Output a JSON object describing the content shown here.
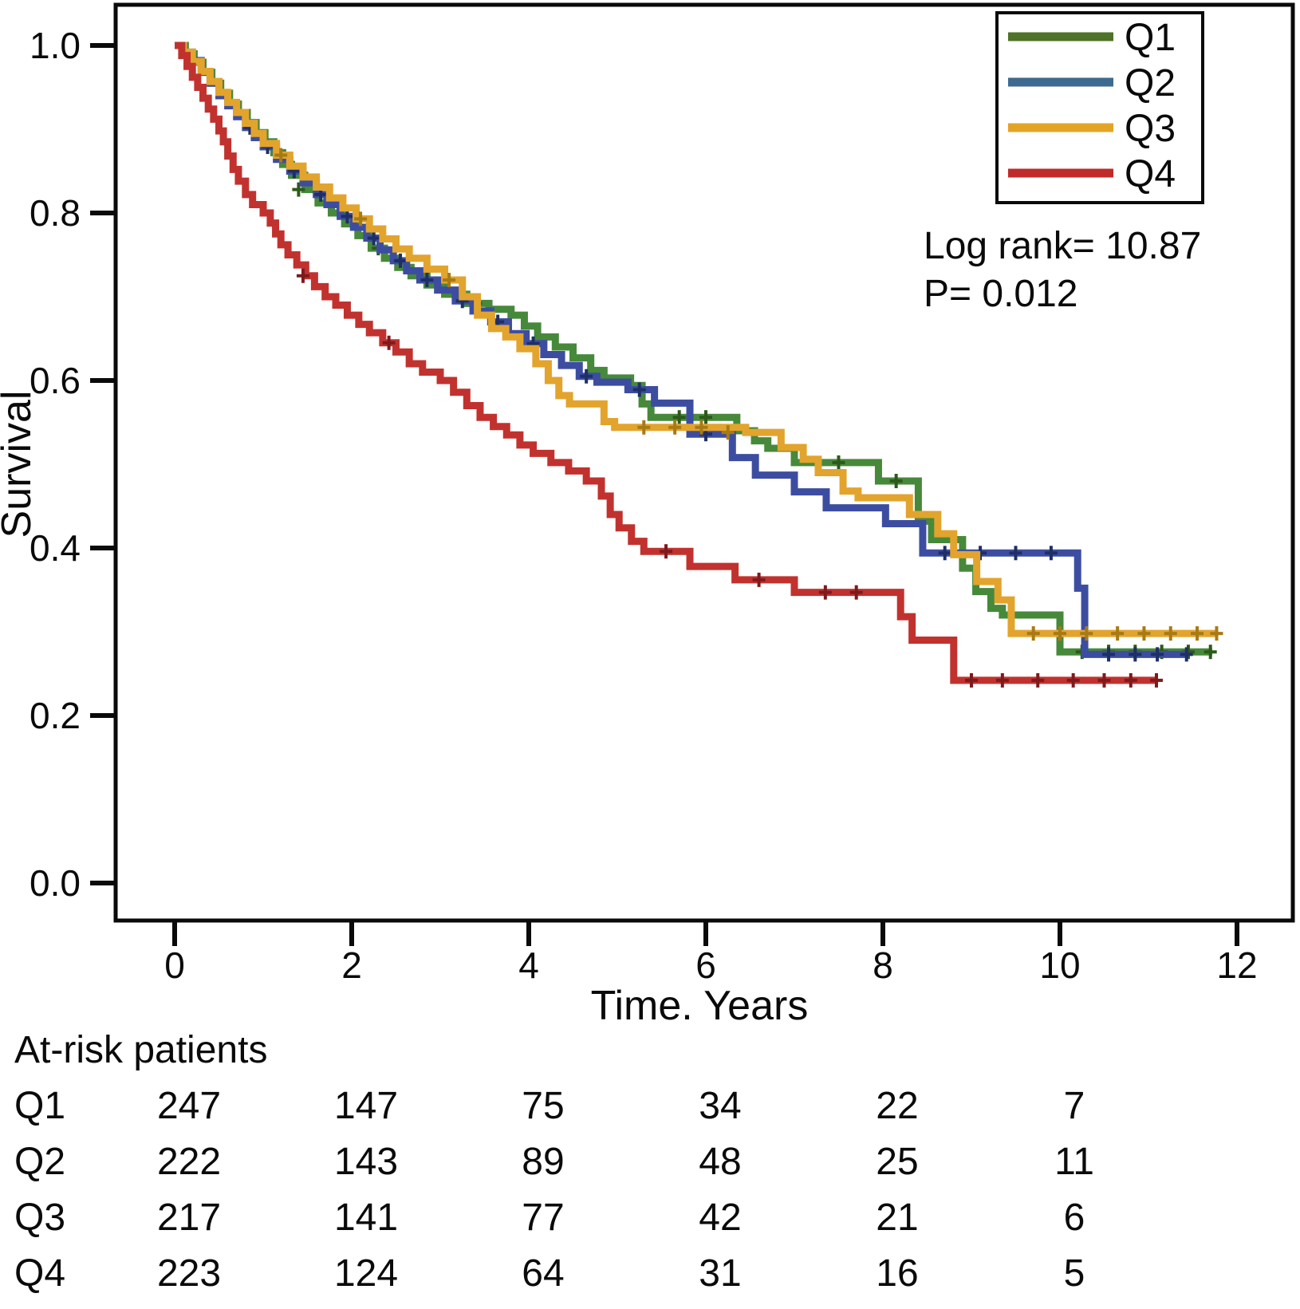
{
  "chart_data": {
    "type": "line",
    "subtype": "kaplan-meier-step",
    "title": "",
    "xlabel": "Time. Years",
    "ylabel": "Survival",
    "xlim": [
      0,
      12
    ],
    "ylim": [
      0.0,
      1.0
    ],
    "grid": false,
    "legend_position": "top-right",
    "xticks": [
      {
        "value": 0,
        "label": "0"
      },
      {
        "value": 2,
        "label": "2"
      },
      {
        "value": 4,
        "label": "4"
      },
      {
        "value": 6,
        "label": "6"
      },
      {
        "value": 8,
        "label": "8"
      },
      {
        "value": 10,
        "label": "10"
      },
      {
        "value": 12,
        "label": "12"
      }
    ],
    "yticks": [
      {
        "value": 0.0,
        "label": "0.0"
      },
      {
        "value": 0.2,
        "label": "0.2"
      },
      {
        "value": 0.4,
        "label": "0.4"
      },
      {
        "value": 0.6,
        "label": "0.6"
      },
      {
        "value": 0.8,
        "label": "0.8"
      },
      {
        "value": 1.0,
        "label": "1.0"
      }
    ],
    "annotations": [
      "Log rank= 10.87",
      "P= 0.012"
    ],
    "series": [
      {
        "name": "Q1",
        "color": "#47893a",
        "legend_color": "#4e7228",
        "censor_color": "#2c5a1a",
        "points": [
          [
            0,
            1.0
          ],
          [
            0.12,
            0.99
          ],
          [
            0.22,
            0.98
          ],
          [
            0.32,
            0.968
          ],
          [
            0.42,
            0.955
          ],
          [
            0.52,
            0.943
          ],
          [
            0.62,
            0.93
          ],
          [
            0.72,
            0.92
          ],
          [
            0.82,
            0.908
          ],
          [
            0.92,
            0.896
          ],
          [
            1.02,
            0.885
          ],
          [
            1.12,
            0.872
          ],
          [
            1.22,
            0.858
          ],
          [
            1.32,
            0.845
          ],
          [
            1.47,
            0.828
          ],
          [
            1.62,
            0.812
          ],
          [
            1.77,
            0.8
          ],
          [
            1.92,
            0.787
          ],
          [
            2.07,
            0.773
          ],
          [
            2.22,
            0.758
          ],
          [
            2.37,
            0.746
          ],
          [
            2.52,
            0.735
          ],
          [
            2.67,
            0.725
          ],
          [
            2.85,
            0.714
          ],
          [
            3.05,
            0.703
          ],
          [
            3.3,
            0.692
          ],
          [
            3.55,
            0.685
          ],
          [
            3.8,
            0.678
          ],
          [
            3.95,
            0.665
          ],
          [
            4.1,
            0.652
          ],
          [
            4.3,
            0.64
          ],
          [
            4.5,
            0.627
          ],
          [
            4.7,
            0.612
          ],
          [
            4.85,
            0.603
          ],
          [
            5.15,
            0.594
          ],
          [
            5.28,
            0.572
          ],
          [
            5.38,
            0.556
          ],
          [
            6.35,
            0.54
          ],
          [
            6.55,
            0.528
          ],
          [
            6.7,
            0.519
          ],
          [
            7.0,
            0.502
          ],
          [
            7.95,
            0.48
          ],
          [
            8.4,
            0.432
          ],
          [
            8.55,
            0.41
          ],
          [
            8.9,
            0.376
          ],
          [
            9.05,
            0.348
          ],
          [
            9.22,
            0.328
          ],
          [
            9.35,
            0.32
          ],
          [
            10.0,
            0.276
          ],
          [
            11.72,
            0.276
          ]
        ],
        "censor_marks": [
          [
            1.4,
            0.828
          ],
          [
            2.3,
            0.758
          ],
          [
            3.4,
            0.692
          ],
          [
            5.7,
            0.556
          ],
          [
            6.0,
            0.556
          ],
          [
            7.5,
            0.502
          ],
          [
            8.15,
            0.48
          ],
          [
            10.25,
            0.276
          ],
          [
            10.55,
            0.276
          ],
          [
            10.85,
            0.276
          ],
          [
            11.15,
            0.276
          ],
          [
            11.45,
            0.276
          ],
          [
            11.7,
            0.276
          ]
        ]
      },
      {
        "name": "Q2",
        "color": "#3c4da1",
        "legend_color": "#3d6a8e",
        "censor_color": "#1e2f66",
        "points": [
          [
            0,
            1.0
          ],
          [
            0.1,
            0.992
          ],
          [
            0.2,
            0.982
          ],
          [
            0.3,
            0.968
          ],
          [
            0.4,
            0.955
          ],
          [
            0.5,
            0.94
          ],
          [
            0.6,
            0.928
          ],
          [
            0.7,
            0.915
          ],
          [
            0.8,
            0.902
          ],
          [
            0.9,
            0.89
          ],
          [
            1.0,
            0.879
          ],
          [
            1.15,
            0.864
          ],
          [
            1.3,
            0.85
          ],
          [
            1.45,
            0.836
          ],
          [
            1.6,
            0.822
          ],
          [
            1.72,
            0.81
          ],
          [
            1.87,
            0.796
          ],
          [
            2.02,
            0.783
          ],
          [
            2.17,
            0.77
          ],
          [
            2.32,
            0.756
          ],
          [
            2.47,
            0.743
          ],
          [
            2.62,
            0.731
          ],
          [
            2.77,
            0.72
          ],
          [
            2.97,
            0.708
          ],
          [
            3.17,
            0.695
          ],
          [
            3.37,
            0.683
          ],
          [
            3.57,
            0.67
          ],
          [
            3.77,
            0.656
          ],
          [
            3.97,
            0.644
          ],
          [
            4.17,
            0.631
          ],
          [
            4.37,
            0.618
          ],
          [
            4.57,
            0.605
          ],
          [
            4.77,
            0.598
          ],
          [
            5.12,
            0.589
          ],
          [
            5.42,
            0.573
          ],
          [
            5.82,
            0.536
          ],
          [
            6.3,
            0.508
          ],
          [
            6.56,
            0.487
          ],
          [
            7.0,
            0.467
          ],
          [
            7.36,
            0.448
          ],
          [
            8.03,
            0.429
          ],
          [
            8.45,
            0.394
          ],
          [
            10.2,
            0.352
          ],
          [
            10.28,
            0.273
          ],
          [
            11.43,
            0.273
          ]
        ],
        "censor_marks": [
          [
            0.85,
            0.902
          ],
          [
            1.05,
            0.879
          ],
          [
            1.35,
            0.85
          ],
          [
            1.65,
            0.822
          ],
          [
            1.95,
            0.796
          ],
          [
            2.25,
            0.77
          ],
          [
            2.55,
            0.743
          ],
          [
            2.85,
            0.72
          ],
          [
            3.25,
            0.695
          ],
          [
            3.65,
            0.67
          ],
          [
            4.05,
            0.644
          ],
          [
            4.65,
            0.605
          ],
          [
            5.25,
            0.589
          ],
          [
            6.0,
            0.536
          ],
          [
            8.7,
            0.394
          ],
          [
            9.1,
            0.394
          ],
          [
            9.5,
            0.394
          ],
          [
            9.9,
            0.394
          ],
          [
            10.55,
            0.273
          ],
          [
            10.85,
            0.273
          ],
          [
            11.1,
            0.273
          ],
          [
            11.43,
            0.273
          ]
        ]
      },
      {
        "name": "Q3",
        "color": "#e2a42d",
        "legend_color": "#e3a424",
        "censor_color": "#a87a15",
        "points": [
          [
            0,
            1.0
          ],
          [
            0.1,
            0.992
          ],
          [
            0.2,
            0.981
          ],
          [
            0.3,
            0.969
          ],
          [
            0.4,
            0.957
          ],
          [
            0.5,
            0.944
          ],
          [
            0.6,
            0.932
          ],
          [
            0.7,
            0.92
          ],
          [
            0.8,
            0.907
          ],
          [
            0.9,
            0.895
          ],
          [
            1.0,
            0.883
          ],
          [
            1.15,
            0.869
          ],
          [
            1.3,
            0.856
          ],
          [
            1.45,
            0.843
          ],
          [
            1.6,
            0.831
          ],
          [
            1.75,
            0.818
          ],
          [
            1.9,
            0.806
          ],
          [
            2.05,
            0.793
          ],
          [
            2.2,
            0.781
          ],
          [
            2.35,
            0.769
          ],
          [
            2.5,
            0.757
          ],
          [
            2.65,
            0.746
          ],
          [
            2.85,
            0.733
          ],
          [
            3.05,
            0.72
          ],
          [
            3.25,
            0.7
          ],
          [
            3.42,
            0.678
          ],
          [
            3.58,
            0.662
          ],
          [
            3.74,
            0.652
          ],
          [
            3.9,
            0.638
          ],
          [
            4.08,
            0.62
          ],
          [
            4.22,
            0.6
          ],
          [
            4.34,
            0.582
          ],
          [
            4.46,
            0.572
          ],
          [
            4.85,
            0.551
          ],
          [
            4.97,
            0.544
          ],
          [
            6.45,
            0.538
          ],
          [
            6.85,
            0.52
          ],
          [
            7.1,
            0.506
          ],
          [
            7.27,
            0.49
          ],
          [
            7.55,
            0.468
          ],
          [
            7.72,
            0.46
          ],
          [
            8.3,
            0.44
          ],
          [
            8.62,
            0.417
          ],
          [
            8.8,
            0.392
          ],
          [
            9.06,
            0.36
          ],
          [
            9.3,
            0.338
          ],
          [
            9.45,
            0.298
          ],
          [
            11.77,
            0.298
          ]
        ],
        "censor_marks": [
          [
            1.2,
            0.869
          ],
          [
            2.1,
            0.793
          ],
          [
            3.1,
            0.72
          ],
          [
            5.3,
            0.544
          ],
          [
            5.65,
            0.544
          ],
          [
            5.95,
            0.544
          ],
          [
            6.25,
            0.538
          ],
          [
            9.7,
            0.298
          ],
          [
            10.0,
            0.298
          ],
          [
            10.3,
            0.298
          ],
          [
            10.65,
            0.298
          ],
          [
            10.95,
            0.298
          ],
          [
            11.25,
            0.298
          ],
          [
            11.55,
            0.298
          ],
          [
            11.77,
            0.298
          ]
        ]
      },
      {
        "name": "Q4",
        "color": "#c1322f",
        "legend_color": "#c02a2a",
        "censor_color": "#7e1a1c",
        "points": [
          [
            0,
            1.0
          ],
          [
            0.08,
            0.988
          ],
          [
            0.14,
            0.975
          ],
          [
            0.2,
            0.962
          ],
          [
            0.26,
            0.95
          ],
          [
            0.32,
            0.937
          ],
          [
            0.38,
            0.924
          ],
          [
            0.44,
            0.912
          ],
          [
            0.5,
            0.898
          ],
          [
            0.55,
            0.885
          ],
          [
            0.6,
            0.868
          ],
          [
            0.66,
            0.852
          ],
          [
            0.72,
            0.838
          ],
          [
            0.8,
            0.822
          ],
          [
            0.88,
            0.81
          ],
          [
            1.0,
            0.8
          ],
          [
            1.08,
            0.788
          ],
          [
            1.14,
            0.775
          ],
          [
            1.2,
            0.762
          ],
          [
            1.28,
            0.75
          ],
          [
            1.38,
            0.738
          ],
          [
            1.48,
            0.725
          ],
          [
            1.58,
            0.712
          ],
          [
            1.7,
            0.7
          ],
          [
            1.82,
            0.69
          ],
          [
            1.95,
            0.678
          ],
          [
            2.08,
            0.667
          ],
          [
            2.2,
            0.657
          ],
          [
            2.35,
            0.645
          ],
          [
            2.5,
            0.634
          ],
          [
            2.65,
            0.62
          ],
          [
            2.8,
            0.61
          ],
          [
            3.0,
            0.6
          ],
          [
            3.15,
            0.586
          ],
          [
            3.3,
            0.57
          ],
          [
            3.45,
            0.556
          ],
          [
            3.6,
            0.545
          ],
          [
            3.75,
            0.535
          ],
          [
            3.9,
            0.523
          ],
          [
            4.05,
            0.513
          ],
          [
            4.25,
            0.502
          ],
          [
            4.45,
            0.492
          ],
          [
            4.65,
            0.48
          ],
          [
            4.82,
            0.462
          ],
          [
            4.92,
            0.44
          ],
          [
            5.02,
            0.424
          ],
          [
            5.16,
            0.408
          ],
          [
            5.3,
            0.396
          ],
          [
            5.82,
            0.378
          ],
          [
            6.33,
            0.362
          ],
          [
            7.0,
            0.347
          ],
          [
            8.2,
            0.318
          ],
          [
            8.33,
            0.29
          ],
          [
            8.8,
            0.242
          ],
          [
            11.09,
            0.242
          ]
        ],
        "censor_marks": [
          [
            1.45,
            0.725
          ],
          [
            2.42,
            0.645
          ],
          [
            5.55,
            0.396
          ],
          [
            6.6,
            0.362
          ],
          [
            7.35,
            0.347
          ],
          [
            7.7,
            0.347
          ],
          [
            9.0,
            0.242
          ],
          [
            9.35,
            0.242
          ],
          [
            9.75,
            0.242
          ],
          [
            10.15,
            0.242
          ],
          [
            10.5,
            0.242
          ],
          [
            10.8,
            0.242
          ],
          [
            11.09,
            0.242
          ]
        ]
      }
    ]
  },
  "at_risk_table": {
    "title": "At-risk patients",
    "time_points": [
      0,
      2,
      4,
      6,
      8,
      10
    ],
    "rows": [
      {
        "label": "Q1",
        "values": [
          "247",
          "147",
          "75",
          "34",
          "22",
          "7"
        ]
      },
      {
        "label": "Q2",
        "values": [
          "222",
          "143",
          "89",
          "48",
          "25",
          "11"
        ]
      },
      {
        "label": "Q3",
        "values": [
          "217",
          "141",
          "77",
          "42",
          "21",
          "6"
        ]
      },
      {
        "label": "Q4",
        "values": [
          "223",
          "124",
          "64",
          "31",
          "16",
          "5"
        ]
      }
    ]
  },
  "colors": {
    "background": "#ffffff",
    "axis": "#0a0a0a",
    "text": "#0a0a0a"
  }
}
